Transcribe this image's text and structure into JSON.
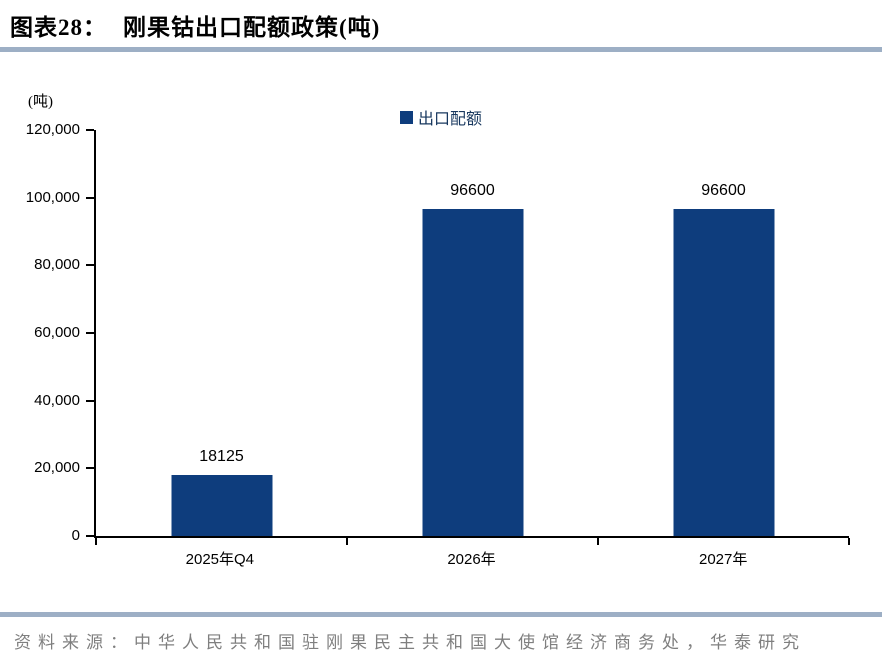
{
  "header": {
    "title_prefix": "图表28：",
    "title": "刚果钴出口配额政策(吨)"
  },
  "chart_data": {
    "type": "bar",
    "title": "刚果钴出口配额政策(吨)",
    "unit_label": "(吨)",
    "legend": [
      {
        "label": "出口配额",
        "color": "#0E3D7D"
      }
    ],
    "legend_position": "top-center",
    "categories": [
      "2025年Q4",
      "2026年",
      "2027年"
    ],
    "series": [
      {
        "name": "出口配额",
        "values": [
          18125,
          96600,
          96600
        ]
      }
    ],
    "data_labels": [
      "18125",
      "96600",
      "96600"
    ],
    "ylim": [
      0,
      120000
    ],
    "y_ticks": [
      {
        "value": 0,
        "label": "0"
      },
      {
        "value": 20000,
        "label": "20,000"
      },
      {
        "value": 40000,
        "label": "40,000"
      },
      {
        "value": 60000,
        "label": "60,000"
      },
      {
        "value": 80000,
        "label": "80,000"
      },
      {
        "value": 100000,
        "label": "100,000"
      },
      {
        "value": 120000,
        "label": "120,000"
      }
    ],
    "grid": false,
    "bar_color": "#0E3D7D"
  },
  "footer": {
    "source": "资料来源：中华人民共和国驻刚果民主共和国大使馆经济商务处，华泰研究"
  },
  "colors": {
    "bar": "#0E3D7D",
    "legend_text": "#17375E",
    "divider": "#9DAFC5",
    "source_text": "#7F7F7F"
  }
}
